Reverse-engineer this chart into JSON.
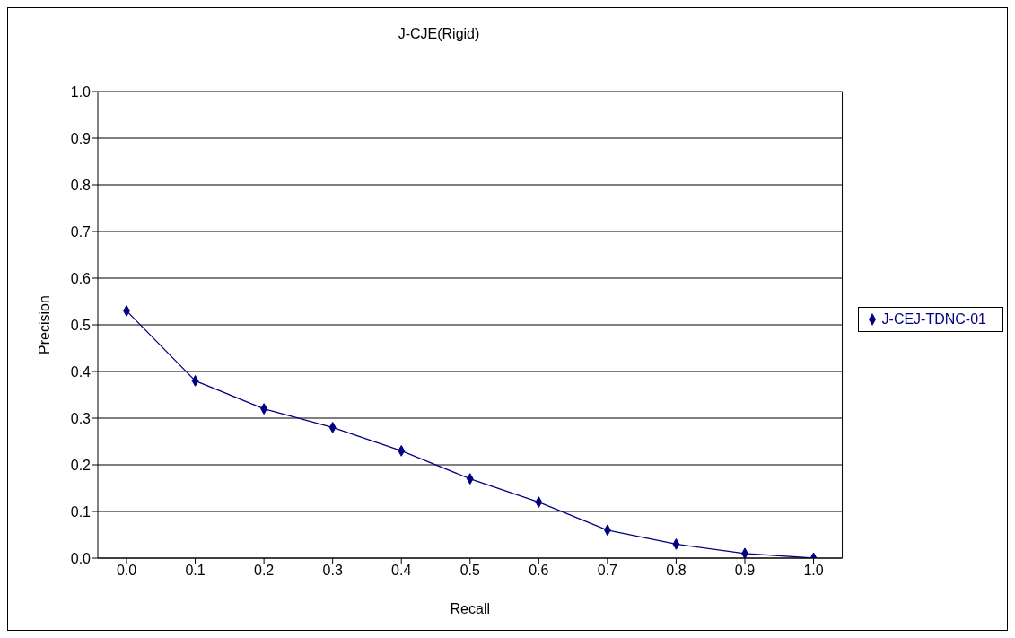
{
  "chart_data": {
    "type": "line",
    "title": "J-CJE(Rigid)",
    "xlabel": "Recall",
    "ylabel": "Precision",
    "categories": [
      "0.0",
      "0.1",
      "0.2",
      "0.3",
      "0.4",
      "0.5",
      "0.6",
      "0.7",
      "0.8",
      "0.9",
      "1.0"
    ],
    "series": [
      {
        "name": "J-CEJ-TDNC-01",
        "color": "#000080",
        "values": [
          0.53,
          0.38,
          0.32,
          0.28,
          0.23,
          0.17,
          0.12,
          0.06,
          0.03,
          0.01,
          0.0
        ]
      }
    ],
    "ylim": [
      0,
      1
    ],
    "yticks": [
      {
        "value": 0,
        "label": "0.0"
      },
      {
        "value": 0.1,
        "label": "0.1"
      },
      {
        "value": 0.2,
        "label": "0.2"
      },
      {
        "value": 0.3,
        "label": "0.3"
      },
      {
        "value": 0.4,
        "label": "0.4"
      },
      {
        "value": 0.5,
        "label": "0.5"
      },
      {
        "value": 0.6,
        "label": "0.6"
      },
      {
        "value": 0.7,
        "label": "0.7"
      },
      {
        "value": 0.8,
        "label": "0.8"
      },
      {
        "value": 0.9,
        "label": "0.9"
      },
      {
        "value": 1,
        "label": "1.0"
      }
    ],
    "grid": "y",
    "legend": "right",
    "marker": "diamond",
    "line_style": "solid"
  }
}
